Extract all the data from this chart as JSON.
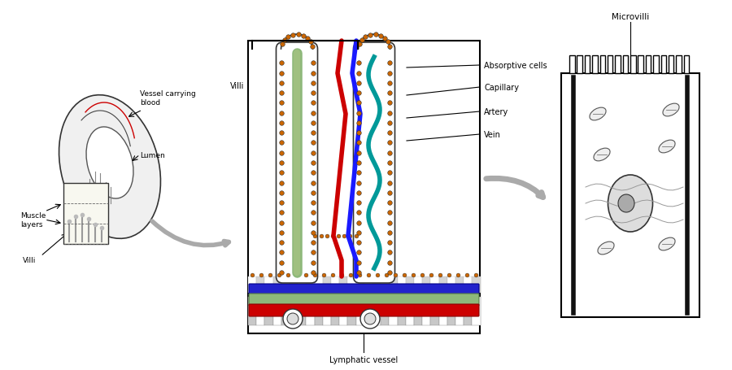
{
  "bg_color": "#ffffff",
  "labels": {
    "vessel_carrying_blood": "Vessel carrying\nblood",
    "lumen": "Lumen",
    "muscle_layers": "Muscle\nlayers",
    "villi_left": "Villi",
    "villi_center": "Villi",
    "absorptive_cells": "Absorptive cells",
    "capillary": "Capillary",
    "artery": "Artery",
    "vein": "Vein",
    "lymphatic_vessel": "Lymphatic vessel",
    "microvilli": "Microvilli"
  },
  "colors": {
    "outline": "#000000",
    "artery": "#cc0000",
    "vein": "#1a1aff",
    "lymph": "#8db87a",
    "teal": "#009999",
    "orange_dots": "#cc6600",
    "gray_arrow": "#aaaaaa"
  }
}
